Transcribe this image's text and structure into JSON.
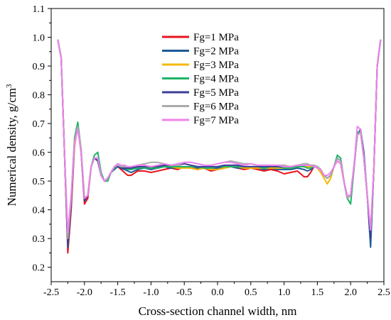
{
  "chart_data": {
    "type": "line",
    "title": "",
    "xlabel": "Cross-section channel width, nm",
    "ylabel": "Numerical density,  g/cm",
    "ylabel_superscript": "3",
    "xlim": [
      -2.5,
      2.5
    ],
    "ylim": [
      0.15,
      1.1
    ],
    "xticks": [
      -2.5,
      -2.0,
      -1.5,
      -1.0,
      -0.5,
      0.0,
      0.5,
      1.0,
      1.5,
      2.0,
      2.5
    ],
    "xtick_labels": [
      "-2.5",
      "-2.0",
      "-1.5",
      "-1.0",
      "-0.5",
      "0.0",
      "0.5",
      "1.0",
      "1.5",
      "2.0",
      "2.5"
    ],
    "yticks": [
      0.2,
      0.3,
      0.4,
      0.5,
      0.6,
      0.7,
      0.8,
      0.9,
      1.0,
      1.1
    ],
    "ytick_labels": [
      "0.2",
      "0.3",
      "0.4",
      "0.5",
      "0.6",
      "0.7",
      "0.8",
      "0.9",
      "1.0",
      "1.1"
    ],
    "grid": false,
    "legend_position": "top-center",
    "x": [
      -2.4,
      -2.35,
      -2.3,
      -2.25,
      -2.2,
      -2.15,
      -2.1,
      -2.05,
      -2.0,
      -1.95,
      -1.9,
      -1.85,
      -1.8,
      -1.75,
      -1.7,
      -1.65,
      -1.6,
      -1.55,
      -1.5,
      -1.45,
      -1.4,
      -1.35,
      -1.3,
      -1.2,
      -1.1,
      -1.0,
      -0.9,
      -0.8,
      -0.7,
      -0.6,
      -0.5,
      -0.4,
      -0.3,
      -0.2,
      -0.1,
      0.0,
      0.1,
      0.2,
      0.3,
      0.4,
      0.5,
      0.6,
      0.7,
      0.8,
      0.9,
      1.0,
      1.1,
      1.2,
      1.3,
      1.35,
      1.4,
      1.45,
      1.5,
      1.55,
      1.6,
      1.65,
      1.7,
      1.75,
      1.8,
      1.85,
      1.9,
      1.95,
      2.0,
      2.05,
      2.1,
      2.15,
      2.2,
      2.25,
      2.3,
      2.35,
      2.4,
      2.45
    ],
    "series": [
      {
        "name": "Fg=1 MPa",
        "color": "#e8141c",
        "values": [
          0.99,
          0.93,
          0.6,
          0.25,
          0.4,
          0.62,
          0.69,
          0.6,
          0.42,
          0.44,
          0.55,
          0.58,
          0.57,
          0.52,
          0.5,
          0.51,
          0.53,
          0.55,
          0.55,
          0.54,
          0.53,
          0.52,
          0.52,
          0.535,
          0.535,
          0.53,
          0.535,
          0.54,
          0.545,
          0.54,
          0.55,
          0.545,
          0.54,
          0.545,
          0.535,
          0.54,
          0.545,
          0.55,
          0.545,
          0.54,
          0.545,
          0.54,
          0.535,
          0.54,
          0.535,
          0.525,
          0.53,
          0.535,
          0.515,
          0.515,
          0.53,
          0.55,
          0.55,
          0.54,
          0.52,
          0.51,
          0.52,
          0.55,
          0.57,
          0.56,
          0.5,
          0.44,
          0.45,
          0.55,
          0.66,
          0.68,
          0.58,
          0.45,
          0.3,
          0.55,
          0.9,
          0.99
        ]
      },
      {
        "name": "Fg=2 MPa",
        "color": "#1a5a96",
        "values": [
          0.99,
          0.93,
          0.6,
          0.27,
          0.42,
          0.63,
          0.69,
          0.6,
          0.43,
          0.45,
          0.55,
          0.58,
          0.57,
          0.52,
          0.5,
          0.51,
          0.53,
          0.54,
          0.55,
          0.545,
          0.54,
          0.535,
          0.53,
          0.54,
          0.545,
          0.54,
          0.545,
          0.55,
          0.545,
          0.545,
          0.55,
          0.545,
          0.545,
          0.545,
          0.54,
          0.545,
          0.55,
          0.55,
          0.545,
          0.545,
          0.545,
          0.545,
          0.54,
          0.545,
          0.54,
          0.54,
          0.54,
          0.545,
          0.54,
          0.535,
          0.54,
          0.55,
          0.55,
          0.54,
          0.52,
          0.51,
          0.52,
          0.55,
          0.58,
          0.57,
          0.5,
          0.44,
          0.45,
          0.55,
          0.66,
          0.68,
          0.6,
          0.45,
          0.27,
          0.55,
          0.9,
          0.99
        ]
      },
      {
        "name": "Fg=3 MPa",
        "color": "#f5b800",
        "values": [
          0.99,
          0.93,
          0.6,
          0.29,
          0.43,
          0.62,
          0.69,
          0.6,
          0.43,
          0.45,
          0.55,
          0.58,
          0.57,
          0.52,
          0.5,
          0.51,
          0.53,
          0.55,
          0.555,
          0.55,
          0.545,
          0.545,
          0.545,
          0.55,
          0.55,
          0.55,
          0.55,
          0.555,
          0.55,
          0.545,
          0.545,
          0.545,
          0.54,
          0.545,
          0.54,
          0.54,
          0.545,
          0.55,
          0.55,
          0.545,
          0.545,
          0.545,
          0.545,
          0.545,
          0.545,
          0.545,
          0.545,
          0.55,
          0.55,
          0.55,
          0.55,
          0.55,
          0.545,
          0.53,
          0.51,
          0.49,
          0.51,
          0.55,
          0.57,
          0.56,
          0.5,
          0.44,
          0.45,
          0.55,
          0.66,
          0.67,
          0.58,
          0.45,
          0.3,
          0.55,
          0.9,
          0.99
        ]
      },
      {
        "name": "Fg=4 MPa",
        "color": "#1fb466",
        "values": [
          0.99,
          0.93,
          0.6,
          0.28,
          0.44,
          0.65,
          0.705,
          0.61,
          0.44,
          0.45,
          0.55,
          0.59,
          0.6,
          0.53,
          0.5,
          0.5,
          0.53,
          0.545,
          0.55,
          0.545,
          0.545,
          0.54,
          0.54,
          0.545,
          0.545,
          0.545,
          0.545,
          0.55,
          0.55,
          0.55,
          0.55,
          0.55,
          0.55,
          0.545,
          0.545,
          0.55,
          0.55,
          0.55,
          0.55,
          0.55,
          0.55,
          0.55,
          0.545,
          0.55,
          0.55,
          0.545,
          0.545,
          0.55,
          0.55,
          0.545,
          0.545,
          0.55,
          0.55,
          0.54,
          0.52,
          0.51,
          0.52,
          0.55,
          0.59,
          0.58,
          0.5,
          0.44,
          0.42,
          0.54,
          0.67,
          0.67,
          0.58,
          0.45,
          0.3,
          0.55,
          0.9,
          0.99
        ]
      },
      {
        "name": "Fg=5 MPa",
        "color": "#3c3c99",
        "values": [
          0.99,
          0.93,
          0.6,
          0.28,
          0.43,
          0.63,
          0.69,
          0.6,
          0.43,
          0.45,
          0.55,
          0.58,
          0.57,
          0.52,
          0.5,
          0.51,
          0.53,
          0.55,
          0.55,
          0.545,
          0.545,
          0.545,
          0.545,
          0.55,
          0.55,
          0.55,
          0.55,
          0.555,
          0.555,
          0.555,
          0.56,
          0.555,
          0.55,
          0.55,
          0.55,
          0.55,
          0.555,
          0.555,
          0.555,
          0.55,
          0.55,
          0.55,
          0.55,
          0.55,
          0.55,
          0.55,
          0.55,
          0.555,
          0.555,
          0.555,
          0.555,
          0.555,
          0.55,
          0.54,
          0.52,
          0.51,
          0.52,
          0.55,
          0.58,
          0.57,
          0.5,
          0.44,
          0.45,
          0.55,
          0.66,
          0.67,
          0.58,
          0.45,
          0.3,
          0.55,
          0.9,
          0.99
        ]
      },
      {
        "name": "Fg=6 MPa",
        "color": "#aaaaaa",
        "values": [
          0.99,
          0.93,
          0.6,
          0.3,
          0.44,
          0.64,
          0.69,
          0.61,
          0.44,
          0.45,
          0.55,
          0.58,
          0.58,
          0.52,
          0.5,
          0.51,
          0.53,
          0.55,
          0.555,
          0.55,
          0.55,
          0.55,
          0.55,
          0.555,
          0.56,
          0.565,
          0.565,
          0.56,
          0.555,
          0.555,
          0.565,
          0.565,
          0.56,
          0.555,
          0.555,
          0.56,
          0.565,
          0.57,
          0.565,
          0.56,
          0.56,
          0.555,
          0.555,
          0.555,
          0.555,
          0.555,
          0.55,
          0.555,
          0.56,
          0.56,
          0.555,
          0.555,
          0.55,
          0.54,
          0.52,
          0.51,
          0.52,
          0.55,
          0.58,
          0.57,
          0.5,
          0.44,
          0.45,
          0.55,
          0.66,
          0.67,
          0.58,
          0.45,
          0.33,
          0.55,
          0.9,
          0.99
        ]
      },
      {
        "name": "Fg=7 MPa",
        "color": "#ee82ee",
        "values": [
          0.99,
          0.93,
          0.6,
          0.32,
          0.45,
          0.63,
          0.68,
          0.6,
          0.44,
          0.45,
          0.55,
          0.58,
          0.58,
          0.52,
          0.5,
          0.51,
          0.53,
          0.55,
          0.56,
          0.555,
          0.555,
          0.55,
          0.55,
          0.555,
          0.555,
          0.55,
          0.555,
          0.56,
          0.555,
          0.56,
          0.565,
          0.565,
          0.56,
          0.555,
          0.555,
          0.56,
          0.565,
          0.565,
          0.56,
          0.555,
          0.56,
          0.555,
          0.555,
          0.555,
          0.555,
          0.55,
          0.55,
          0.555,
          0.555,
          0.555,
          0.555,
          0.55,
          0.545,
          0.54,
          0.52,
          0.52,
          0.53,
          0.55,
          0.57,
          0.56,
          0.5,
          0.45,
          0.45,
          0.55,
          0.69,
          0.68,
          0.58,
          0.45,
          0.33,
          0.55,
          0.9,
          0.99
        ]
      }
    ]
  }
}
